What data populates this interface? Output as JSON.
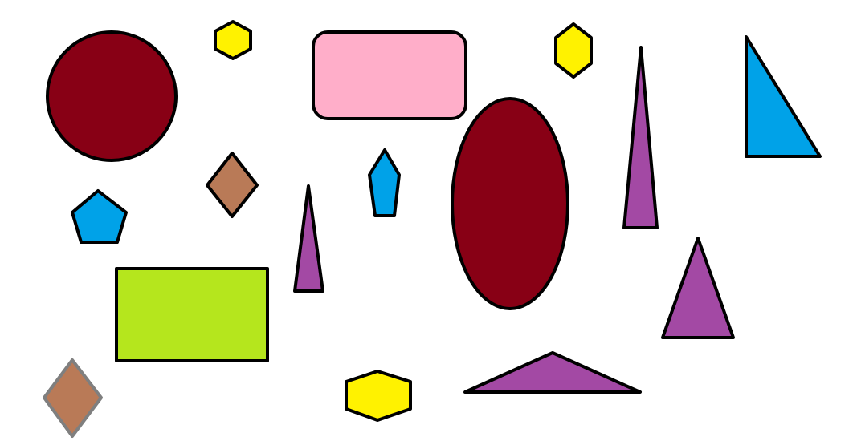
{
  "colors": {
    "dark_red": "#880015",
    "pink": "#ffaec9",
    "yellow": "#fff200",
    "blue": "#00a2e8",
    "purple": "#a349a4",
    "brown": "#b97a57",
    "lime": "#b5e61d",
    "outline": "#000000",
    "gray_outline": "#7f7f7f"
  },
  "shapes": [
    {
      "kind": "circle",
      "color": "dark_red"
    },
    {
      "kind": "hexagon",
      "color": "yellow"
    },
    {
      "kind": "rounded-rectangle",
      "color": "pink"
    },
    {
      "kind": "hexagon",
      "color": "yellow"
    },
    {
      "kind": "triangle",
      "color": "purple"
    },
    {
      "kind": "right-triangle",
      "color": "blue"
    },
    {
      "kind": "diamond",
      "color": "brown"
    },
    {
      "kind": "pentagon",
      "color": "blue"
    },
    {
      "kind": "pentagon",
      "color": "blue"
    },
    {
      "kind": "ellipse",
      "color": "dark_red"
    },
    {
      "kind": "triangle",
      "color": "purple"
    },
    {
      "kind": "rectangle",
      "color": "lime"
    },
    {
      "kind": "triangle",
      "color": "purple"
    },
    {
      "kind": "diamond",
      "color": "brown"
    },
    {
      "kind": "hexagon",
      "color": "yellow"
    },
    {
      "kind": "triangle",
      "color": "purple"
    }
  ]
}
